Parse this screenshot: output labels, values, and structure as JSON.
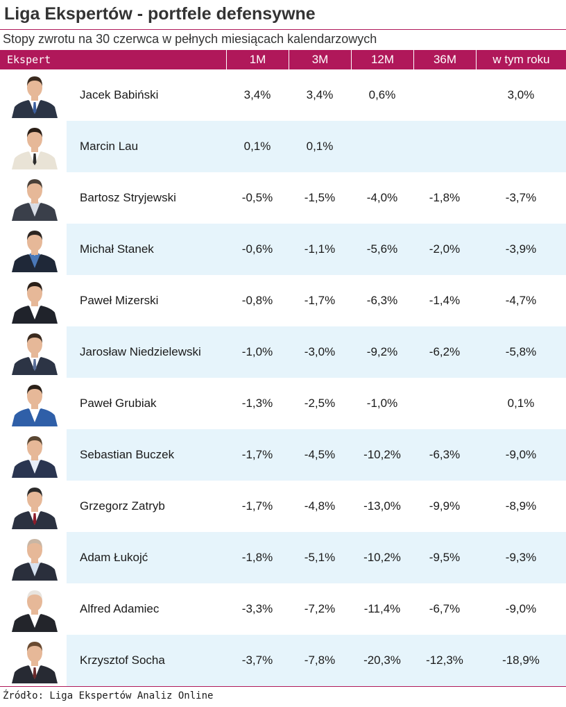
{
  "title": "Liga Ekspertów - portfele defensywne",
  "subtitle": "Stopy zwrotu na 30 czerwca w pełnych miesiącach kalendarzowych",
  "source": "Źródło: Liga Ekspertów Analiz Online",
  "chart_data": {
    "type": "table",
    "columns": [
      "Ekspert",
      "1M",
      "3M",
      "12M",
      "36M",
      "w tym roku"
    ],
    "rows": [
      {
        "name": "Jacek Babiński",
        "m1": "3,4%",
        "m3": "3,4%",
        "m12": "0,6%",
        "m36": "",
        "ytd": "3,0%"
      },
      {
        "name": "Marcin Lau",
        "m1": "0,1%",
        "m3": "0,1%",
        "m12": "",
        "m36": "",
        "ytd": ""
      },
      {
        "name": "Bartosz Stryjewski",
        "m1": "-0,5%",
        "m3": "-1,5%",
        "m12": "-4,0%",
        "m36": "-1,8%",
        "ytd": "-3,7%"
      },
      {
        "name": "Michał Stanek",
        "m1": "-0,6%",
        "m3": "-1,1%",
        "m12": "-5,6%",
        "m36": "-2,0%",
        "ytd": "-3,9%"
      },
      {
        "name": "Paweł Mizerski",
        "m1": "-0,8%",
        "m3": "-1,7%",
        "m12": "-6,3%",
        "m36": "-1,4%",
        "ytd": "-4,7%"
      },
      {
        "name": "Jarosław Niedzielewski",
        "m1": "-1,0%",
        "m3": "-3,0%",
        "m12": "-9,2%",
        "m36": "-6,2%",
        "ytd": "-5,8%"
      },
      {
        "name": "Paweł Grubiak",
        "m1": "-1,3%",
        "m3": "-2,5%",
        "m12": "-1,0%",
        "m36": "",
        "ytd": "0,1%"
      },
      {
        "name": "Sebastian Buczek",
        "m1": "-1,7%",
        "m3": "-4,5%",
        "m12": "-10,2%",
        "m36": "-6,3%",
        "ytd": "-9,0%"
      },
      {
        "name": "Grzegorz Zatryb",
        "m1": "-1,7%",
        "m3": "-4,8%",
        "m12": "-13,0%",
        "m36": "-9,9%",
        "ytd": "-8,9%"
      },
      {
        "name": "Adam Łukojć",
        "m1": "-1,8%",
        "m3": "-5,1%",
        "m12": "-10,2%",
        "m36": "-9,5%",
        "ytd": "-9,3%"
      },
      {
        "name": "Alfred Adamiec",
        "m1": "-3,3%",
        "m3": "-7,2%",
        "m12": "-11,4%",
        "m36": "-6,7%",
        "ytd": "-9,0%"
      },
      {
        "name": "Krzysztof Socha",
        "m1": "-3,7%",
        "m3": "-7,8%",
        "m12": "-20,3%",
        "m36": "-12,3%",
        "ytd": "-18,9%"
      }
    ]
  },
  "colors": {
    "header_bg": "#b0185a",
    "stripe_bg": "#e6f4fb",
    "suit_colors": [
      "#2b3445",
      "#e9e3d6",
      "#3a3f4a",
      "#1f2838",
      "#20232b",
      "#2c3445",
      "#2f5fa8",
      "#2a3550",
      "#2b3140",
      "#2a2f3c",
      "#23252b",
      "#272a33"
    ],
    "shirt_colors": [
      "#ffffff",
      "#ffffff",
      "#d8dde6",
      "#4a78b8",
      "#ffffff",
      "#ffffff",
      "#ffffff",
      "#e8eef8",
      "#ffffff",
      "#d6e2f0",
      "#ffffff",
      "#ffffff"
    ],
    "tie_colors": [
      "#3c5f9e",
      "#2c2c2c",
      "",
      "",
      "",
      "#5a6f99",
      "",
      "",
      "#8b1c2a",
      "",
      "",
      "#6b2a2a"
    ],
    "hair_colors": [
      "#3a2a1e",
      "#2a1e16",
      "#4a4038",
      "#2b2420",
      "#2a1f18",
      "#3a2a1e",
      "#2a2018",
      "#5a4632",
      "#2b2a2a",
      "#c9b6a4",
      "#e8e4de",
      "#6a4a30"
    ],
    "skin": "#e6b898"
  }
}
